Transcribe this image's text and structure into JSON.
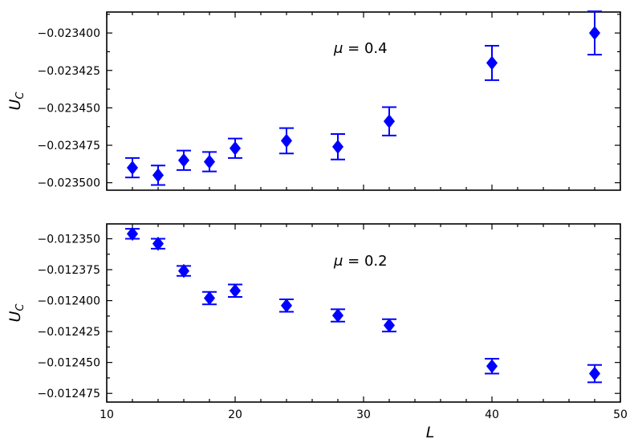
{
  "chart_data": [
    {
      "type": "scatter",
      "title": "",
      "xlabel": "",
      "ylabel": "U_C",
      "ylabel_main": "U",
      "ylabel_sub": "C",
      "annotation": "μ = 0.4",
      "annotation_symbol": "μ",
      "annotation_value": " = 0.4",
      "xlim": [
        10,
        50
      ],
      "ylim": [
        -0.023505,
        -0.023386
      ],
      "x_ticks": [
        10,
        20,
        30,
        40,
        50
      ],
      "y_ticks": [
        -0.0235,
        -0.023475,
        -0.02345,
        -0.023425,
        -0.0234
      ],
      "y_tick_labels": [
        "−0.023500",
        "−0.023475",
        "−0.023450",
        "−0.023425",
        "−0.023400"
      ],
      "series": [
        {
          "marker": "diamond",
          "color": "#0000ff",
          "x": [
            12,
            14,
            16,
            18,
            20,
            24,
            28,
            32,
            40,
            48
          ],
          "y": [
            -0.02349,
            -0.023495,
            -0.023485,
            -0.023486,
            -0.023477,
            -0.023472,
            -0.023476,
            -0.023459,
            -0.02342,
            -0.0234
          ],
          "err": [
            6.5e-06,
            6.5e-06,
            6.5e-06,
            6.5e-06,
            6.5e-06,
            8.5e-06,
            8.5e-06,
            9.5e-06,
            1.15e-05,
            1.45e-05
          ]
        }
      ]
    },
    {
      "type": "scatter",
      "title": "",
      "xlabel": "L",
      "ylabel": "U_C",
      "ylabel_main": "U",
      "ylabel_sub": "C",
      "annotation": "μ = 0.2",
      "annotation_symbol": "μ",
      "annotation_value": " = 0.2",
      "xlim": [
        10,
        50
      ],
      "ylim": [
        -0.012482,
        -0.012338
      ],
      "x_ticks": [
        10,
        20,
        30,
        40,
        50
      ],
      "x_tick_labels": [
        "10",
        "20",
        "30",
        "40",
        "50"
      ],
      "y_ticks": [
        -0.012475,
        -0.01245,
        -0.012425,
        -0.0124,
        -0.012375,
        -0.01235
      ],
      "y_tick_labels": [
        "−0.012475",
        "−0.012450",
        "−0.012425",
        "−0.012400",
        "−0.012375",
        "−0.012350"
      ],
      "series": [
        {
          "marker": "diamond",
          "color": "#0000ff",
          "x": [
            12,
            14,
            16,
            18,
            20,
            24,
            28,
            32,
            40,
            48
          ],
          "y": [
            -0.012346,
            -0.012354,
            -0.012376,
            -0.012398,
            -0.012392,
            -0.012404,
            -0.012412,
            -0.01242,
            -0.012453,
            -0.012459
          ],
          "err": [
            4e-06,
            4e-06,
            4e-06,
            5e-06,
            5e-06,
            5e-06,
            5e-06,
            5e-06,
            6e-06,
            7e-06
          ]
        }
      ]
    }
  ]
}
